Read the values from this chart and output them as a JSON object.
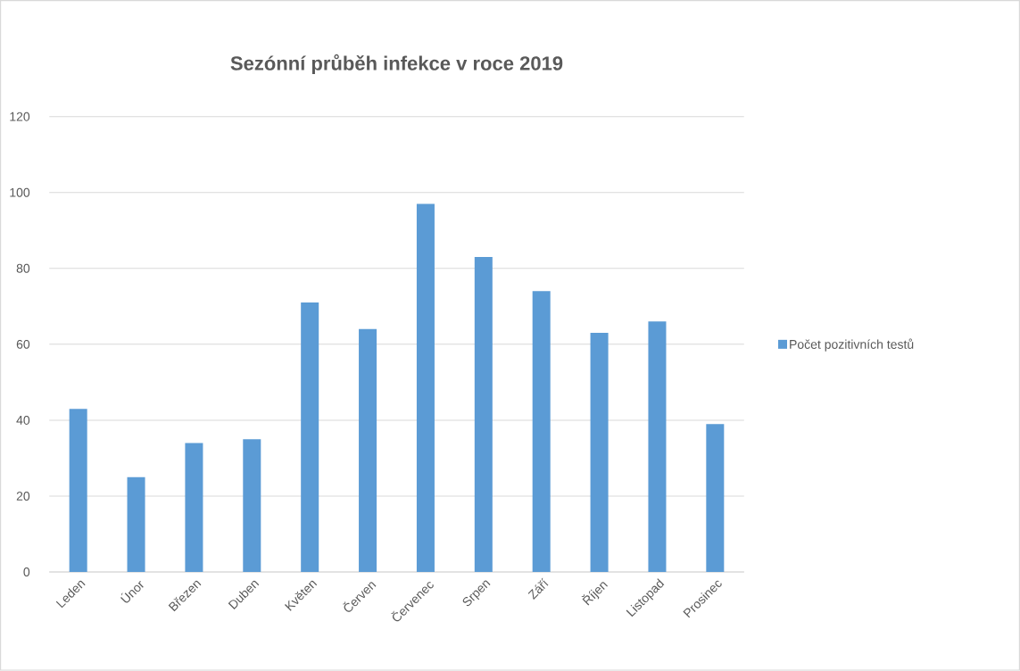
{
  "chart_data": {
    "type": "bar",
    "title": "Sezónní průběh infekce v roce 2019",
    "categories": [
      "Leden",
      "Únor",
      "Březen",
      "Duben",
      "Květen",
      "Červen",
      "Červenec",
      "Srpen",
      "Září",
      "Říjen",
      "Listopad",
      "Prosinec"
    ],
    "series": [
      {
        "name": "Počet pozitivních testů",
        "color": "#5b9bd5",
        "values": [
          43,
          25,
          34,
          35,
          71,
          64,
          97,
          83,
          74,
          63,
          66,
          39
        ]
      }
    ],
    "ylim": [
      0,
      120
    ],
    "yticks": [
      0,
      20,
      40,
      60,
      80,
      100,
      120
    ],
    "grid": "y",
    "legend": "right"
  }
}
